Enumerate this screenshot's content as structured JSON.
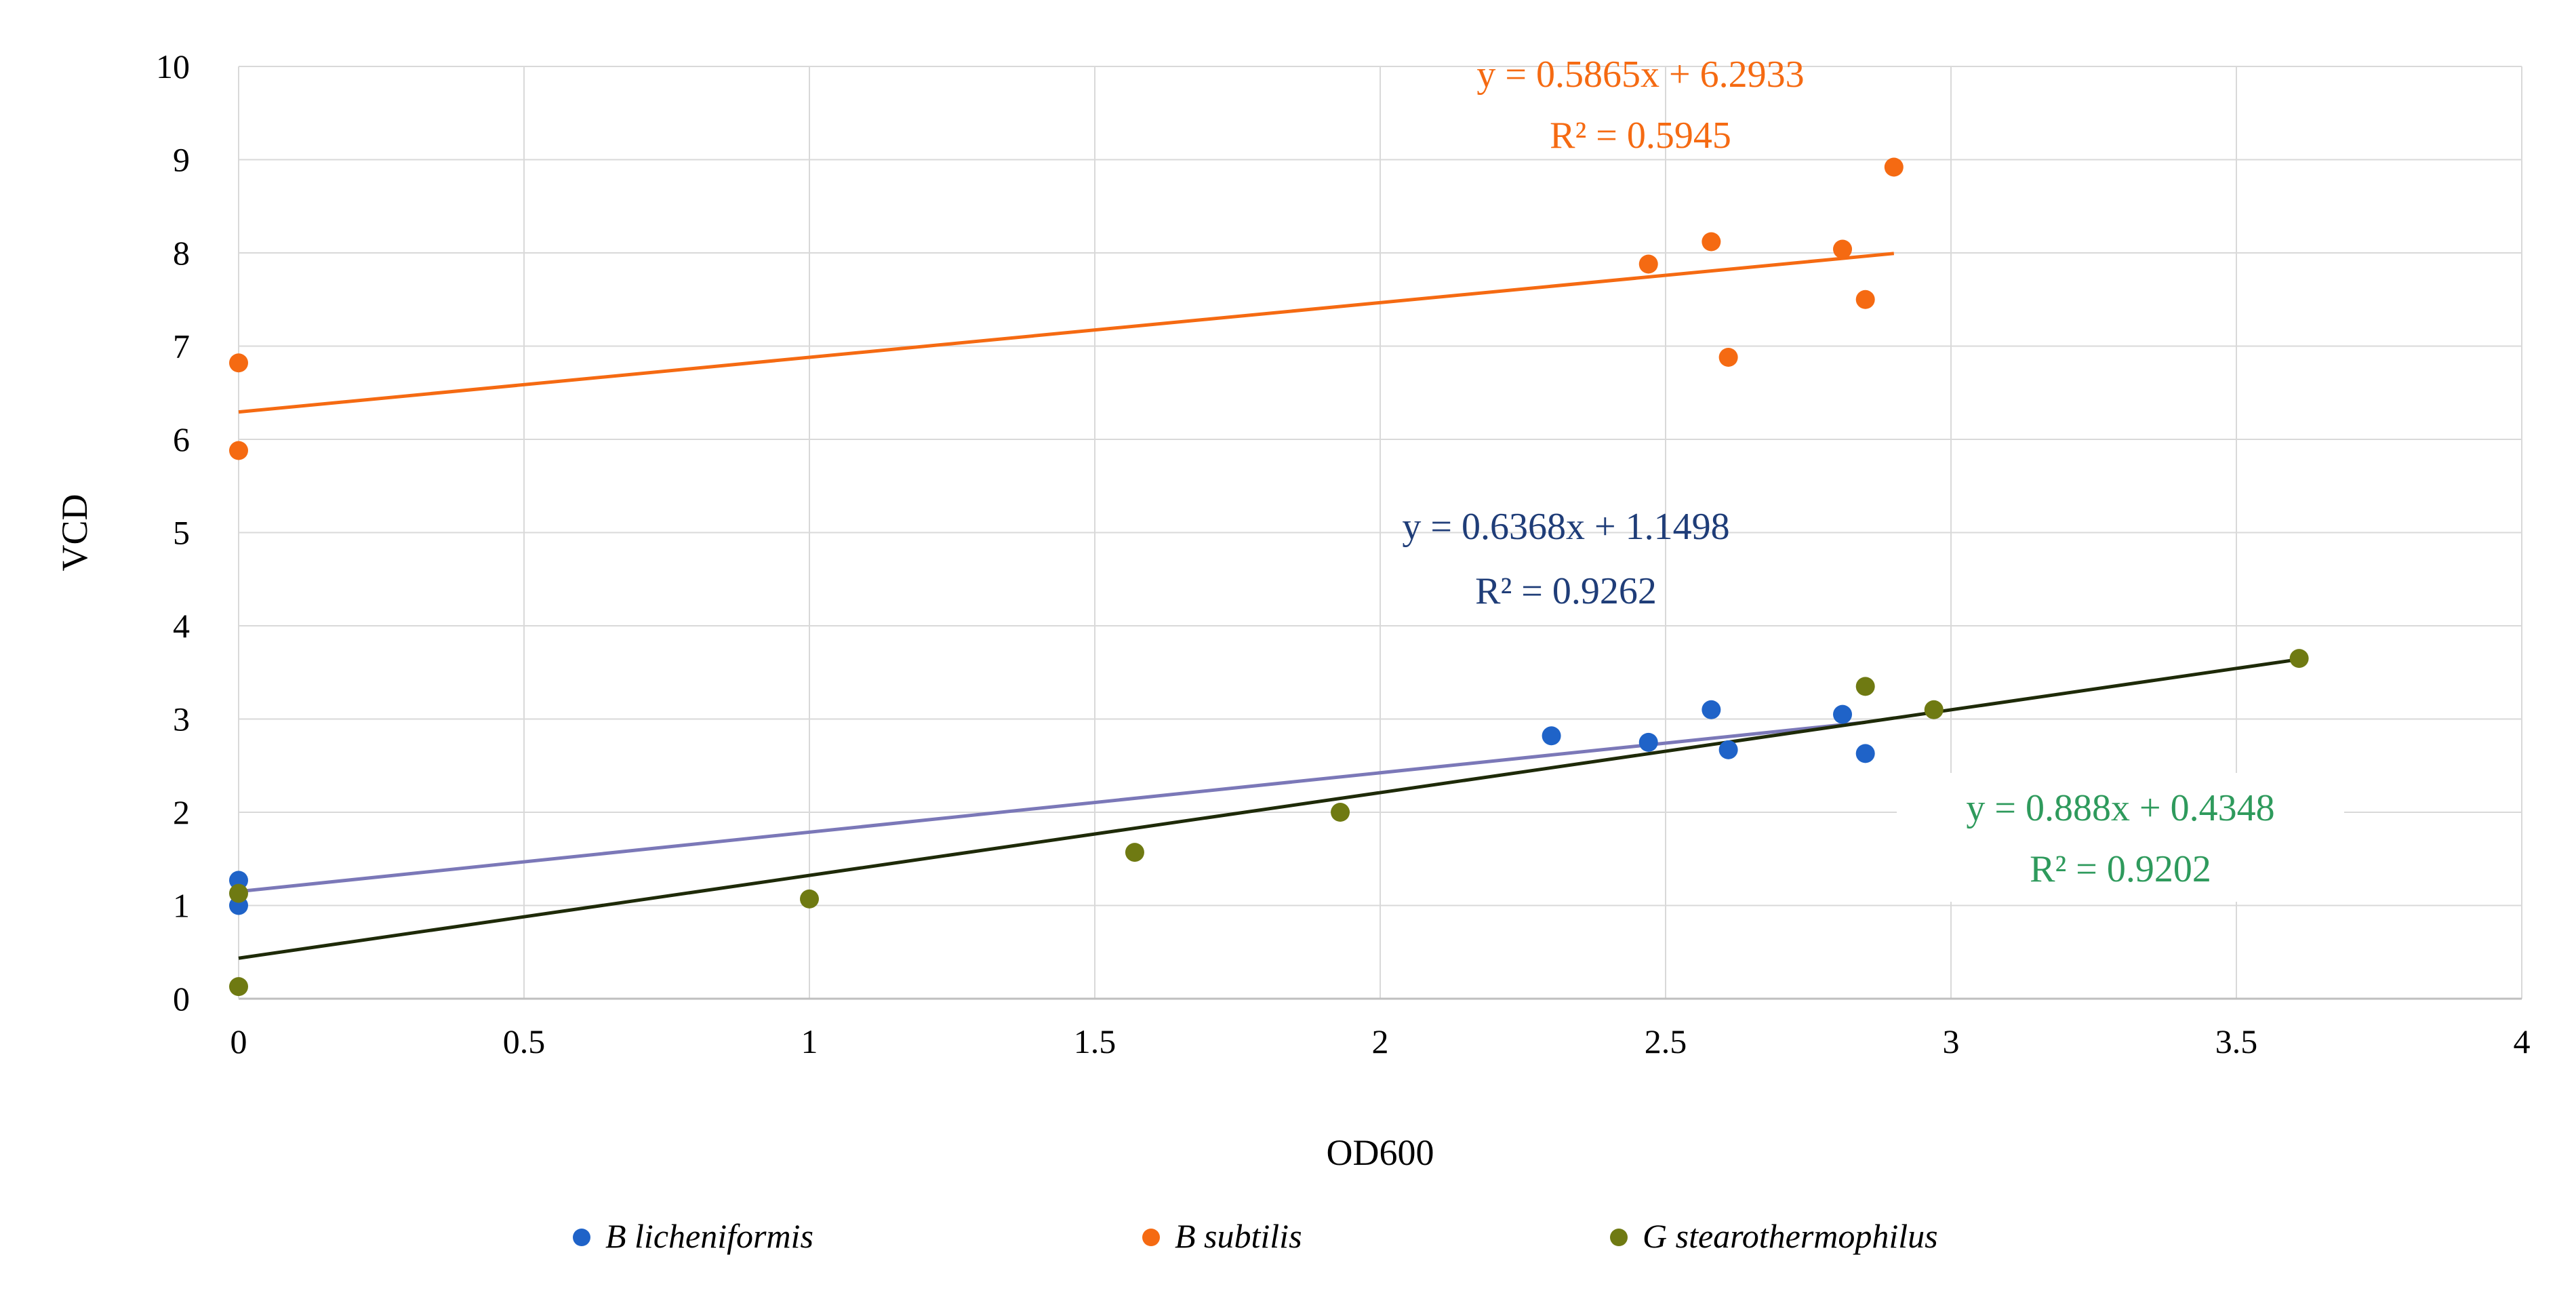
{
  "chart_data": {
    "type": "scatter",
    "xlabel": "OD600",
    "ylabel": "VCD",
    "xlim": [
      0,
      4
    ],
    "ylim": [
      0,
      10
    ],
    "x_ticks": [
      "0",
      "0.5",
      "1",
      "1.5",
      "2",
      "2.5",
      "3",
      "3.5",
      "4"
    ],
    "y_ticks": [
      "0",
      "1",
      "2",
      "3",
      "4",
      "5",
      "6",
      "7",
      "8",
      "9",
      "10"
    ],
    "grid": true,
    "legend_position": "bottom",
    "series": [
      {
        "name": "B licheniformis",
        "color": "#1f63c8",
        "trendline_color": "#7b78b8",
        "points": [
          {
            "x": 0,
            "y": 1.0
          },
          {
            "x": 0,
            "y": 1.27
          },
          {
            "x": 2.3,
            "y": 2.82
          },
          {
            "x": 2.47,
            "y": 2.75
          },
          {
            "x": 2.58,
            "y": 3.1
          },
          {
            "x": 2.61,
            "y": 2.67
          },
          {
            "x": 2.81,
            "y": 3.05
          },
          {
            "x": 2.85,
            "y": 2.63
          }
        ],
        "trendline": {
          "slope": 0.6368,
          "intercept": 1.1498,
          "x_start": 0,
          "x_end": 2.85
        },
        "equation": "y = 0.6368x + 1.1498",
        "r2": "R² = 0.9262",
        "label_color": "#1f3d78"
      },
      {
        "name": "B subtilis",
        "color": "#f56a12",
        "trendline_color": "#f56a12",
        "points": [
          {
            "x": 0,
            "y": 5.88
          },
          {
            "x": 0,
            "y": 6.82
          },
          {
            "x": 2.47,
            "y": 7.88
          },
          {
            "x": 2.58,
            "y": 8.12
          },
          {
            "x": 2.61,
            "y": 6.88
          },
          {
            "x": 2.81,
            "y": 8.04
          },
          {
            "x": 2.85,
            "y": 7.5
          },
          {
            "x": 2.9,
            "y": 8.92
          }
        ],
        "trendline": {
          "slope": 0.5865,
          "intercept": 6.2933,
          "x_start": 0,
          "x_end": 2.9
        },
        "equation": "y = 0.5865x + 6.2933",
        "r2": "R² = 0.5945",
        "label_color": "#f56a12"
      },
      {
        "name": "G stearothermophilus",
        "color": "#6f7a12",
        "trendline_color": "#1e2a08",
        "points": [
          {
            "x": 0,
            "y": 0.13
          },
          {
            "x": 0,
            "y": 1.13
          },
          {
            "x": 1.0,
            "y": 1.07
          },
          {
            "x": 1.57,
            "y": 1.57
          },
          {
            "x": 1.93,
            "y": 2.0
          },
          {
            "x": 2.85,
            "y": 3.35
          },
          {
            "x": 2.97,
            "y": 3.1
          },
          {
            "x": 3.61,
            "y": 3.65
          }
        ],
        "trendline": {
          "slope": 0.888,
          "intercept": 0.4348,
          "x_start": 0,
          "x_end": 3.61
        },
        "equation": "y = 0.888x + 0.4348",
        "r2": "R² = 0.9202",
        "label_color": "#2e9a5c"
      }
    ]
  }
}
